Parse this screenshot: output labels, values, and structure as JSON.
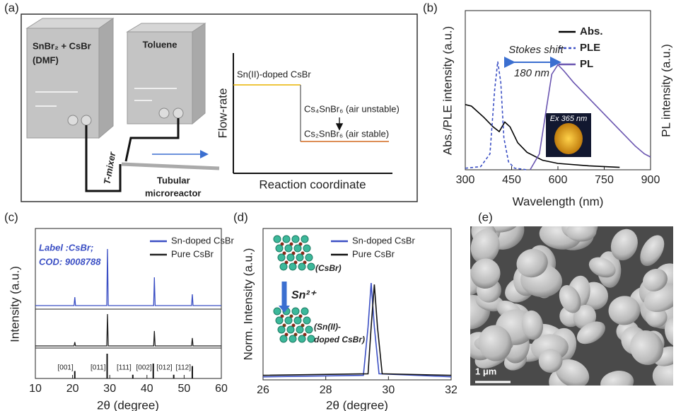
{
  "panel_labels": [
    "(a)",
    "(b)",
    "(c)",
    "(d)",
    "(e)"
  ],
  "schematic": {
    "reservoirs": [
      {
        "lines": [
          "SnBr₂ + CsBr",
          "(DMF)"
        ]
      },
      {
        "lines": [
          "Toluene"
        ]
      }
    ],
    "mixer": "T-mixer",
    "reactor": [
      "Tubular",
      "microreactor"
    ],
    "plot": {
      "ylabel": "Flow-rate",
      "xlabel": "Reaction coordinate",
      "stages": [
        "Sn(II)-doped CsBr",
        "Cs₄SnBr₆ (air unstable)",
        "Cs₂SnBr₆ (air stable)"
      ]
    }
  },
  "chart_data": [
    {
      "type": "line",
      "xlabel": "Wavelength (nm)",
      "ylabel": "Abs./PLE intensity (a.u.)",
      "y2label": "PL intensity (a.u.)",
      "xlim": [
        300,
        900
      ],
      "xticks": [
        300,
        450,
        600,
        750,
        900
      ],
      "ylim": [
        0,
        1
      ],
      "y2lim": [
        0,
        1
      ],
      "annotations": [
        "Stokes shift",
        "180 nm",
        "Ex 365 nm"
      ],
      "series": [
        {
          "name": "Abs.",
          "color": "#000000",
          "style": "solid",
          "x": [
            300,
            320,
            360,
            390,
            410,
            428,
            445,
            470,
            500,
            550,
            600,
            700,
            800
          ],
          "values": [
            0.41,
            0.4,
            0.33,
            0.27,
            0.24,
            0.3,
            0.27,
            0.17,
            0.11,
            0.06,
            0.04,
            0.025,
            0.015
          ]
        },
        {
          "name": "PLE",
          "color": "#3b4fc4",
          "style": "dashed",
          "x": [
            300,
            350,
            380,
            395,
            405,
            415,
            425,
            440,
            460,
            500
          ],
          "values": [
            0.01,
            0.02,
            0.1,
            0.5,
            0.68,
            0.55,
            0.2,
            0.05,
            0.01,
            0.0
          ]
        },
        {
          "name": "PL",
          "color": "#6a55b0",
          "style": "solid",
          "axis": "y2",
          "x": [
            510,
            540,
            560,
            580,
            600,
            620,
            650,
            700,
            750,
            800,
            850,
            880,
            900
          ],
          "values": [
            0.0,
            0.1,
            0.35,
            0.6,
            0.66,
            0.62,
            0.55,
            0.45,
            0.35,
            0.25,
            0.15,
            0.1,
            0.08
          ]
        }
      ]
    },
    {
      "type": "line",
      "xlabel": "2θ (degree)",
      "ylabel": "Intensity (a.u.)",
      "xlim": [
        10,
        60
      ],
      "xticks": [
        10,
        20,
        30,
        40,
        50,
        60
      ],
      "ylim": [
        0,
        1
      ],
      "annotations": [
        "Label :CsBr;",
        "COD: 9008788"
      ],
      "series": [
        {
          "name": "Sn-doped CsBr",
          "color": "#3b4fc4",
          "x": [
            10,
            20.4,
            20.6,
            20.8,
            29.2,
            29.4,
            29.6,
            41.8,
            42.0,
            42.2,
            52.0,
            52.2,
            52.4,
            60
          ],
          "values": [
            0,
            0,
            0.15,
            0,
            0,
            1.0,
            0,
            0,
            0.5,
            0,
            0,
            0.2,
            0,
            0
          ]
        },
        {
          "name": "Pure CsBr",
          "color": "#222222",
          "x": [
            10,
            20.4,
            20.6,
            20.8,
            29.2,
            29.4,
            29.6,
            41.8,
            42.0,
            42.2,
            52.0,
            52.2,
            52.4,
            60
          ],
          "values": [
            0,
            0,
            0.12,
            0,
            0,
            1.0,
            0,
            0,
            0.47,
            0,
            0,
            0.25,
            0,
            0
          ]
        }
      ],
      "reference": {
        "x": [
          20.6,
          29.3,
          36.2,
          41.7,
          47.2,
          52.2
        ],
        "values": [
          0.3,
          1.0,
          0.15,
          0.6,
          0.15,
          0.5
        ],
        "labels": [
          "[001]",
          "[011]",
          "[111]",
          "[002]",
          "[012]",
          "[112]"
        ]
      }
    },
    {
      "type": "line",
      "xlabel": "2θ (degree)",
      "ylabel": "Norm. Intensity (a.u.)",
      "xlim": [
        26,
        32
      ],
      "xticks": [
        26,
        28,
        30,
        32
      ],
      "ylim": [
        0,
        1
      ],
      "annotations": [
        "(CsBr)",
        "Sn²⁺",
        "(Sn(II)-",
        "doped CsBr)"
      ],
      "series": [
        {
          "name": "Sn-doped CsBr",
          "color": "#3b4fc4",
          "x": [
            26,
            29.2,
            29.35,
            29.45,
            29.55,
            29.7,
            32
          ],
          "values": [
            0.02,
            0.03,
            0.35,
            0.64,
            0.35,
            0.04,
            0.02
          ]
        },
        {
          "name": "Pure CsBr",
          "color": "#111111",
          "x": [
            26,
            29.35,
            29.45,
            29.55,
            29.65,
            29.8,
            32
          ],
          "values": [
            0.03,
            0.04,
            0.35,
            0.63,
            0.35,
            0.04,
            0.03
          ]
        }
      ]
    }
  ],
  "sem": {
    "scale_bar": "1 μm"
  }
}
